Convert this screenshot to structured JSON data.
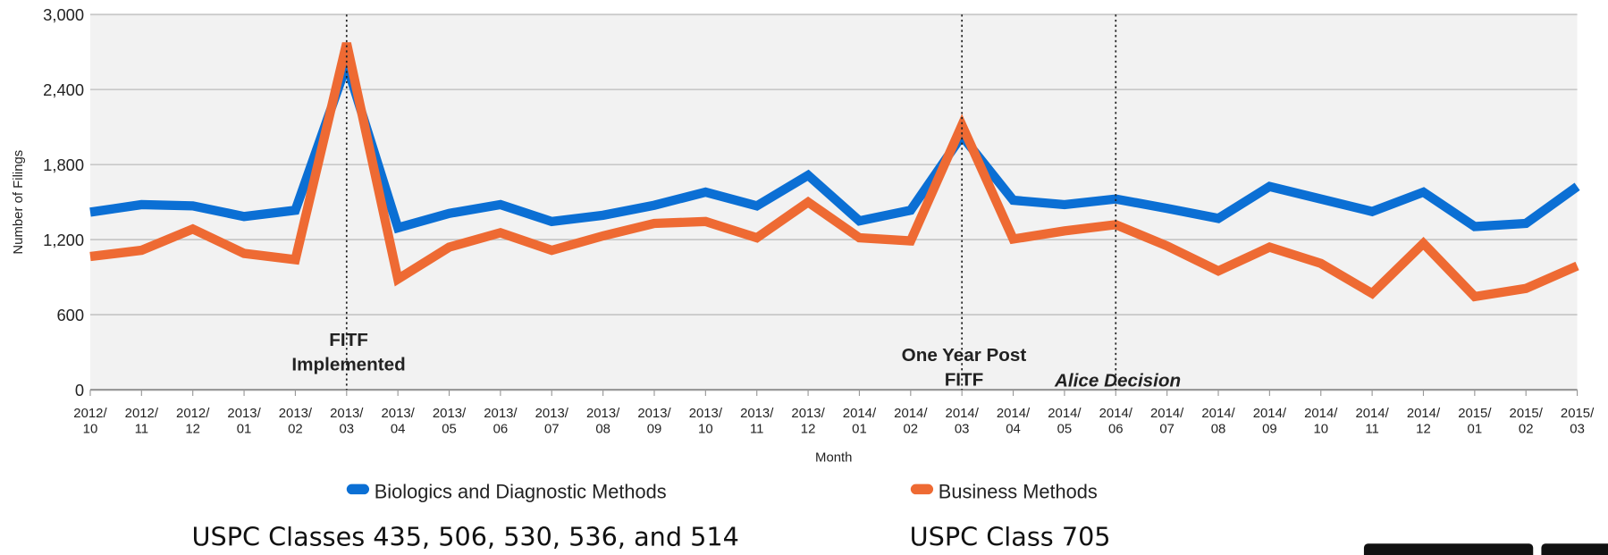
{
  "chart_data": {
    "type": "line",
    "y_label": "Number of Filings",
    "x_label": "Month",
    "categories": [
      "2012/10",
      "2012/11",
      "2012/12",
      "2013/01",
      "2013/02",
      "2013/03",
      "2013/04",
      "2013/05",
      "2013/06",
      "2013/07",
      "2013/08",
      "2013/09",
      "2013/10",
      "2013/11",
      "2013/12",
      "2014/01",
      "2014/02",
      "2014/03",
      "2014/04",
      "2014/05",
      "2014/06",
      "2014/07",
      "2014/08",
      "2014/09",
      "2014/10",
      "2014/11",
      "2014/12",
      "2015/01",
      "2015/02",
      "2015/03"
    ],
    "series": [
      {
        "name": "Biologics and Diagnostic Methods",
        "color": "#0b6fd4",
        "values": [
          1420,
          1480,
          1470,
          1385,
          1435,
          2600,
          1295,
          1410,
          1480,
          1345,
          1395,
          1475,
          1580,
          1470,
          1715,
          1350,
          1435,
          2030,
          1515,
          1480,
          1525,
          1450,
          1370,
          1625,
          1525,
          1425,
          1580,
          1305,
          1330,
          1625
        ]
      },
      {
        "name": "Business Methods",
        "color": "#ee6a33",
        "values": [
          1065,
          1115,
          1285,
          1090,
          1040,
          2770,
          885,
          1140,
          1255,
          1115,
          1230,
          1330,
          1345,
          1215,
          1500,
          1215,
          1190,
          2115,
          1205,
          1270,
          1320,
          1150,
          950,
          1140,
          1010,
          770,
          1170,
          745,
          810,
          990
        ]
      }
    ],
    "ylim": [
      0,
      3000
    ],
    "yticks": [
      0,
      600,
      {
        "value": 1200,
        "label": "1,200"
      },
      {
        "value": 1800,
        "label": "1,800"
      },
      {
        "value": 2400,
        "label": "2,400"
      },
      {
        "value": 3000,
        "label": "3,000"
      }
    ],
    "grid": true,
    "annotations": [
      {
        "at": "2013/03",
        "lines": [
          "FITF",
          "Implemented"
        ],
        "italic": false
      },
      {
        "at": "2014/03",
        "lines": [
          "One Year Post",
          "FITF"
        ],
        "italic": false
      },
      {
        "at": "2014/06",
        "lines": [
          "Alice Decision"
        ],
        "italic": true
      }
    ],
    "legend": "bottom",
    "series_captions": [
      "USPC Classes 435, 506, 530, 536, and 514",
      "USPC Class 705"
    ]
  }
}
